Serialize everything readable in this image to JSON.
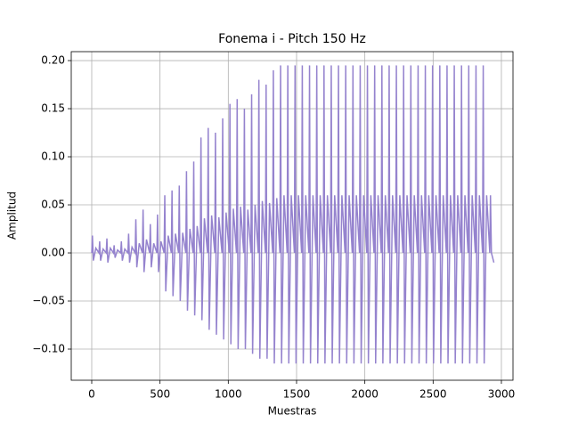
{
  "chart_data": {
    "type": "line",
    "title": "Fonema i - Pitch 150 Hz",
    "x_label": "Muestras",
    "y_label": "Amplitud",
    "x": [
      0,
      5,
      12,
      30,
      53,
      58,
      65,
      83,
      106,
      111,
      118,
      136,
      159,
      164,
      171,
      189,
      212,
      217,
      224,
      242,
      265,
      270,
      277,
      295,
      318,
      323,
      330,
      348,
      371,
      376,
      383,
      401,
      424,
      429,
      436,
      454,
      477,
      482,
      489,
      507,
      530,
      535,
      542,
      560,
      583,
      588,
      595,
      613,
      636,
      641,
      648,
      666,
      689,
      694,
      701,
      719,
      742,
      747,
      754,
      772,
      795,
      800,
      807,
      825,
      848,
      853,
      860,
      878,
      901,
      906,
      913,
      931,
      954,
      959,
      966,
      984,
      1007,
      1012,
      1019,
      1037,
      1060,
      1065,
      1072,
      1090,
      1113,
      1118,
      1125,
      1143,
      1166,
      1171,
      1178,
      1196,
      1219,
      1224,
      1231,
      1249,
      1272,
      1277,
      1284,
      1302,
      1325,
      1330,
      1337,
      1355,
      1378,
      1383,
      1390,
      1408,
      1431,
      1436,
      1443,
      1461,
      1484,
      1489,
      1496,
      1514,
      1537,
      1542,
      1549,
      1567,
      1590,
      1595,
      1602,
      1620,
      1643,
      1648,
      1655,
      1673,
      1696,
      1701,
      1708,
      1726,
      1749,
      1754,
      1761,
      1779,
      1802,
      1807,
      1814,
      1832,
      1855,
      1860,
      1867,
      1885,
      1908,
      1913,
      1920,
      1938,
      1961,
      1966,
      1973,
      1991,
      2014,
      2019,
      2026,
      2044,
      2067,
      2072,
      2079,
      2097,
      2120,
      2125,
      2132,
      2150,
      2173,
      2178,
      2185,
      2203,
      2226,
      2231,
      2238,
      2256,
      2279,
      2284,
      2291,
      2309,
      2332,
      2337,
      2344,
      2362,
      2385,
      2390,
      2397,
      2415,
      2438,
      2443,
      2450,
      2468,
      2491,
      2496,
      2503,
      2521,
      2544,
      2549,
      2556,
      2574,
      2597,
      2602,
      2609,
      2627,
      2650,
      2655,
      2662,
      2680,
      2703,
      2708,
      2715,
      2733,
      2756,
      2761,
      2768,
      2786,
      2809,
      2814,
      2821,
      2839,
      2862,
      2867,
      2874,
      2892,
      2915,
      2920,
      2927,
      2945
    ],
    "series": [
      {
        "name": "Fonema i",
        "color": "#9583ce",
        "values": [
          0,
          0.018,
          -0.008,
          0.005,
          0,
          0.012,
          -0.008,
          0.004,
          0,
          0.015,
          -0.01,
          0.005,
          0,
          0.008,
          -0.005,
          0.003,
          0,
          0.012,
          -0.008,
          0.004,
          0,
          0.02,
          -0.01,
          0.006,
          0,
          0.035,
          -0.015,
          0.01,
          0,
          0.045,
          -0.02,
          0.014,
          0,
          0.03,
          -0.015,
          0.01,
          0,
          0.04,
          -0.02,
          0.012,
          0,
          0.06,
          -0.04,
          0.018,
          0,
          0.065,
          -0.045,
          0.02,
          0,
          0.07,
          -0.05,
          0.021,
          0,
          0.085,
          -0.06,
          0.025,
          0,
          0.095,
          -0.065,
          0.028,
          0,
          0.12,
          -0.07,
          0.036,
          0,
          0.13,
          -0.08,
          0.039,
          0,
          0.125,
          -0.085,
          0.037,
          0,
          0.14,
          -0.09,
          0.042,
          0,
          0.155,
          -0.095,
          0.046,
          0,
          0.16,
          -0.1,
          0.048,
          0,
          0.15,
          -0.1,
          0.045,
          0,
          0.165,
          -0.105,
          0.05,
          0,
          0.18,
          -0.11,
          0.054,
          0,
          0.175,
          -0.11,
          0.052,
          0,
          0.19,
          -0.115,
          0.057,
          0,
          0.195,
          -0.115,
          0.06,
          0,
          0.195,
          -0.115,
          0.06,
          0,
          0.195,
          -0.115,
          0.06,
          0,
          0.195,
          -0.115,
          0.06,
          0,
          0.195,
          -0.115,
          0.06,
          0,
          0.195,
          -0.115,
          0.06,
          0,
          0.195,
          -0.115,
          0.06,
          0,
          0.195,
          -0.115,
          0.06,
          0,
          0.195,
          -0.115,
          0.06,
          0,
          0.195,
          -0.115,
          0.06,
          0,
          0.195,
          -0.115,
          0.06,
          0,
          0.195,
          -0.115,
          0.06,
          0,
          0.195,
          -0.115,
          0.06,
          0,
          0.195,
          -0.115,
          0.06,
          0,
          0.195,
          -0.115,
          0.06,
          0,
          0.195,
          -0.115,
          0.06,
          0,
          0.195,
          -0.115,
          0.06,
          0,
          0.195,
          -0.115,
          0.06,
          0,
          0.195,
          -0.115,
          0.06,
          0,
          0.195,
          -0.115,
          0.06,
          0,
          0.195,
          -0.115,
          0.06,
          0,
          0.195,
          -0.115,
          0.06,
          0,
          0.195,
          -0.115,
          0.06,
          0,
          0.195,
          -0.115,
          0.06,
          0,
          0.195,
          -0.115,
          0.06,
          0,
          0.195,
          -0.115,
          0.06,
          0,
          0.195,
          -0.115,
          0.06,
          0,
          0.195,
          -0.115,
          0.06,
          0,
          0.195,
          -0.115,
          0.06,
          0,
          0.06,
          0,
          -0.01
        ]
      }
    ],
    "xlim": [
      -150,
      3085
    ],
    "ylim": [
      -0.1324,
      0.2093
    ],
    "xticks": [
      0,
      500,
      1000,
      1500,
      2000,
      2500,
      3000
    ],
    "yticks": [
      {
        "value": -0.1,
        "label": "−0.10"
      },
      {
        "value": -0.05,
        "label": "−0.05"
      },
      {
        "value": 0,
        "label": "0.00"
      },
      {
        "value": 0.05,
        "label": "0.05"
      },
      {
        "value": 0.1,
        "label": "0.10"
      },
      {
        "value": 0.15,
        "label": "0.15"
      },
      {
        "value": 0.2,
        "label": "0.20"
      }
    ],
    "grid": true
  }
}
